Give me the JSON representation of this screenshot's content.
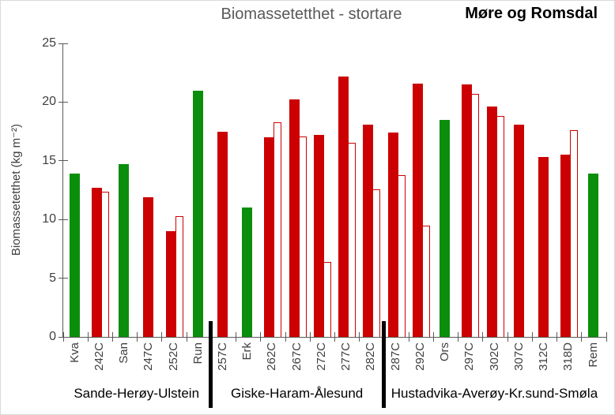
{
  "header": {
    "title": "Biomassetetthet - stortare",
    "region_label": "Møre og Romsdal"
  },
  "chart_data": {
    "type": "bar",
    "title": "Biomassetetthet - stortare",
    "xlabel": "",
    "ylabel": "Biomassetetthet  (kg m⁻²)",
    "ylim": [
      0,
      25
    ],
    "yticks": [
      0,
      5,
      10,
      15,
      20,
      25
    ],
    "grid": "off",
    "legend": "none",
    "series_note": "solid = filled bars (green or red); outline = white bars with red border drawn beside the solid bar",
    "regions": [
      {
        "label": "Sande-Herøy-Ulstein",
        "count": 6
      },
      {
        "label": "Giske-Haram-Ålesund",
        "count": 7
      },
      {
        "label": "Hustadvika-Averøy-Kr.sund-Smøla",
        "count": 9
      }
    ],
    "categories": [
      {
        "label": "Kva",
        "color": "green",
        "solid": 13.9,
        "outline": null
      },
      {
        "label": "242C",
        "color": "red",
        "solid": 12.7,
        "outline": 12.4
      },
      {
        "label": "San",
        "color": "green",
        "solid": 14.7,
        "outline": null
      },
      {
        "label": "247C",
        "color": "red",
        "solid": 11.9,
        "outline": null
      },
      {
        "label": "252C",
        "color": "red",
        "solid": 9.0,
        "outline": 10.3
      },
      {
        "label": "Run",
        "color": "green",
        "solid": 21.0,
        "outline": null
      },
      {
        "label": "257C",
        "color": "red",
        "solid": 17.5,
        "outline": null
      },
      {
        "label": "Erk",
        "color": "green",
        "solid": 11.0,
        "outline": null
      },
      {
        "label": "262C",
        "color": "red",
        "solid": 17.0,
        "outline": 18.3
      },
      {
        "label": "267C",
        "color": "red",
        "solid": 20.2,
        "outline": 17.1
      },
      {
        "label": "272C",
        "color": "red",
        "solid": 17.2,
        "outline": 6.4
      },
      {
        "label": "277C",
        "color": "red",
        "solid": 22.2,
        "outline": 16.5
      },
      {
        "label": "282C",
        "color": "red",
        "solid": 18.1,
        "outline": 12.6
      },
      {
        "label": "287C",
        "color": "red",
        "solid": 17.4,
        "outline": 13.8
      },
      {
        "label": "292C",
        "color": "red",
        "solid": 21.6,
        "outline": 9.5
      },
      {
        "label": "Ors",
        "color": "green",
        "solid": 18.5,
        "outline": null
      },
      {
        "label": "297C",
        "color": "red",
        "solid": 21.5,
        "outline": 20.7
      },
      {
        "label": "302C",
        "color": "red",
        "solid": 19.6,
        "outline": 18.8
      },
      {
        "label": "307C",
        "color": "red",
        "solid": 18.1,
        "outline": null
      },
      {
        "label": "312C",
        "color": "red",
        "solid": 15.3,
        "outline": null
      },
      {
        "label": "318D",
        "color": "red",
        "solid": 15.5,
        "outline": 17.6
      },
      {
        "label": "Rem",
        "color": "green",
        "solid": 13.9,
        "outline": null
      }
    ],
    "colors": {
      "green": "#0B8E0B",
      "red": "#CC0000",
      "outline_fill": "#FFFFFF",
      "outline_border": "#CC0000",
      "divider": "#000000",
      "axis": "#595959",
      "tick_text": "#3F3F3F",
      "title_text": "#595959",
      "region_title_text": "#000000"
    }
  }
}
